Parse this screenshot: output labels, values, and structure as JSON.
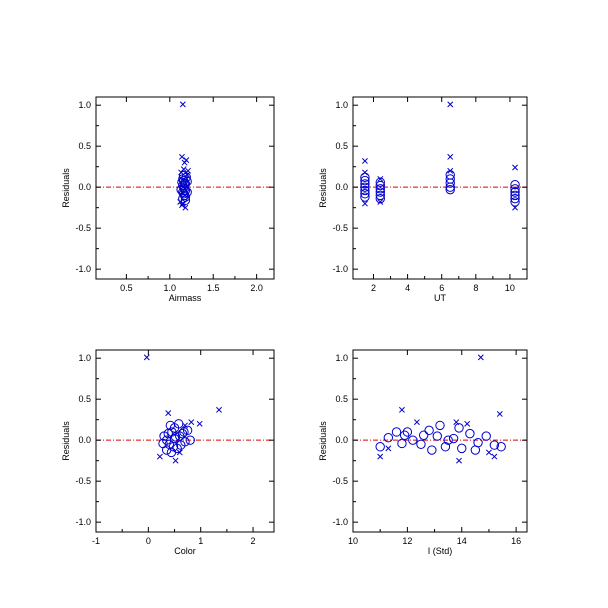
{
  "colors": {
    "marker": "#0000cc",
    "zero_line": "#e00000",
    "axes": "#000000"
  },
  "chart_data": [
    {
      "type": "scatter",
      "title": "",
      "xlabel": "Airmass",
      "ylabel": "Residuals",
      "xlim": [
        0.15,
        2.2
      ],
      "ylim": [
        -1.12,
        1.1
      ],
      "xticks": [
        0.5,
        1.0,
        1.5,
        2.0
      ],
      "xtick_labels": [
        "0.5",
        "1.0",
        "1.5",
        "2.0"
      ],
      "yticks": [
        -1.0,
        -0.5,
        0.0,
        0.5,
        1.0
      ],
      "ytick_labels": [
        "-1.0",
        "-0.5",
        "0.0",
        "0.5",
        "1.0"
      ],
      "reference_line": {
        "y": 0.0,
        "style": "dash-dot",
        "color": "#e00000"
      },
      "series": [
        {
          "marker": "x",
          "points": [
            [
              1.15,
              1.01
            ],
            [
              1.14,
              0.37
            ],
            [
              1.19,
              0.33
            ],
            [
              1.17,
              0.3
            ],
            [
              1.16,
              0.22
            ],
            [
              1.13,
              0.18
            ],
            [
              1.2,
              0.15
            ],
            [
              1.15,
              -0.2
            ],
            [
              1.18,
              -0.25
            ],
            [
              1.12,
              -0.18
            ],
            [
              1.21,
              0.2
            ],
            [
              1.14,
              -0.22
            ]
          ]
        },
        {
          "marker": "o",
          "points": [
            [
              1.15,
              0.1
            ],
            [
              1.16,
              0.08
            ],
            [
              1.17,
              0.05
            ],
            [
              1.18,
              0.04
            ],
            [
              1.15,
              0.02
            ],
            [
              1.16,
              0.0
            ],
            [
              1.17,
              -0.02
            ],
            [
              1.18,
              -0.04
            ],
            [
              1.15,
              -0.06
            ],
            [
              1.16,
              -0.08
            ],
            [
              1.17,
              -0.1
            ],
            [
              1.18,
              -0.12
            ],
            [
              1.15,
              -0.14
            ],
            [
              1.19,
              0.12
            ],
            [
              1.14,
              0.06
            ],
            [
              1.2,
              -0.06
            ],
            [
              1.13,
              -0.03
            ],
            [
              1.2,
              0.07
            ],
            [
              1.16,
              0.14
            ],
            [
              1.18,
              -0.16
            ]
          ]
        }
      ]
    },
    {
      "type": "scatter",
      "title": "",
      "xlabel": "UT",
      "ylabel": "Residuals",
      "xlim": [
        0.8,
        11.0
      ],
      "ylim": [
        -1.12,
        1.1
      ],
      "xticks": [
        2,
        4,
        6,
        8,
        10
      ],
      "xtick_labels": [
        "2",
        "4",
        "6",
        "8",
        "10"
      ],
      "yticks": [
        -1.0,
        -0.5,
        0.0,
        0.5,
        1.0
      ],
      "ytick_labels": [
        "-1.0",
        "-0.5",
        "0.0",
        "0.5",
        "1.0"
      ],
      "reference_line": {
        "y": 0.0,
        "style": "dash-dot",
        "color": "#e00000"
      },
      "series": [
        {
          "marker": "x",
          "points": [
            [
              1.5,
              0.32
            ],
            [
              1.5,
              -0.2
            ],
            [
              2.4,
              -0.18
            ],
            [
              6.5,
              1.01
            ],
            [
              6.5,
              0.37
            ],
            [
              6.5,
              0.2
            ],
            [
              10.3,
              0.24
            ],
            [
              10.3,
              -0.25
            ],
            [
              1.5,
              0.18
            ],
            [
              2.4,
              0.1
            ]
          ]
        },
        {
          "marker": "o",
          "points": [
            [
              1.5,
              0.12
            ],
            [
              1.5,
              0.08
            ],
            [
              1.5,
              0.04
            ],
            [
              1.5,
              0.0
            ],
            [
              1.5,
              -0.04
            ],
            [
              1.5,
              -0.08
            ],
            [
              1.5,
              -0.12
            ],
            [
              2.4,
              0.06
            ],
            [
              2.4,
              0.02
            ],
            [
              2.4,
              -0.02
            ],
            [
              2.4,
              -0.06
            ],
            [
              2.4,
              -0.1
            ],
            [
              2.4,
              -0.14
            ],
            [
              6.5,
              0.15
            ],
            [
              6.5,
              0.1
            ],
            [
              6.5,
              0.05
            ],
            [
              6.5,
              0.0
            ],
            [
              6.5,
              -0.03
            ],
            [
              10.3,
              0.03
            ],
            [
              10.3,
              -0.02
            ],
            [
              10.3,
              -0.06
            ],
            [
              10.3,
              -0.1
            ],
            [
              10.3,
              -0.14
            ],
            [
              10.3,
              -0.18
            ]
          ]
        }
      ]
    },
    {
      "type": "scatter",
      "title": "",
      "xlabel": "Color",
      "ylabel": "Residuals",
      "xlim": [
        -1.0,
        2.4
      ],
      "ylim": [
        -1.12,
        1.1
      ],
      "xticks": [
        -1,
        0,
        1,
        2
      ],
      "xtick_labels": [
        "-1",
        "0",
        "1",
        "2"
      ],
      "yticks": [
        -1.0,
        -0.5,
        0.0,
        0.5,
        1.0
      ],
      "ytick_labels": [
        "-1.0",
        "-0.5",
        "0.0",
        "0.5",
        "1.0"
      ],
      "reference_line": {
        "y": 0.0,
        "style": "dash-dot",
        "color": "#e00000"
      },
      "series": [
        {
          "marker": "x",
          "points": [
            [
              -0.03,
              1.01
            ],
            [
              1.35,
              0.37
            ],
            [
              0.38,
              0.33
            ],
            [
              0.98,
              0.2
            ],
            [
              0.82,
              0.22
            ],
            [
              0.22,
              -0.2
            ],
            [
              0.52,
              -0.25
            ],
            [
              0.7,
              0.18
            ],
            [
              0.6,
              -0.15
            ]
          ]
        },
        {
          "marker": "o",
          "points": [
            [
              0.3,
              0.05
            ],
            [
              0.35,
              0.0
            ],
            [
              0.4,
              -0.05
            ],
            [
              0.45,
              0.1
            ],
            [
              0.5,
              0.15
            ],
            [
              0.55,
              -0.1
            ],
            [
              0.6,
              0.05
            ],
            [
              0.65,
              0.08
            ],
            [
              0.7,
              -0.02
            ],
            [
              0.75,
              0.12
            ],
            [
              0.8,
              0.0
            ],
            [
              0.35,
              -0.12
            ],
            [
              0.42,
              0.18
            ],
            [
              0.48,
              -0.08
            ],
            [
              0.58,
              0.2
            ],
            [
              0.28,
              -0.04
            ],
            [
              0.5,
              0.02
            ],
            [
              0.62,
              -0.06
            ],
            [
              0.38,
              0.08
            ],
            [
              0.44,
              -0.15
            ],
            [
              0.68,
              0.1
            ],
            [
              0.52,
              0.04
            ]
          ]
        }
      ]
    },
    {
      "type": "scatter",
      "title": "",
      "xlabel": "I (Std)",
      "ylabel": "Residuals",
      "xlim": [
        10.0,
        16.4
      ],
      "ylim": [
        -1.12,
        1.1
      ],
      "xticks": [
        10,
        12,
        14,
        16
      ],
      "xtick_labels": [
        "10",
        "12",
        "14",
        "16"
      ],
      "yticks": [
        -1.0,
        -0.5,
        0.0,
        0.5,
        1.0
      ],
      "ytick_labels": [
        "-1.0",
        "-0.5",
        "0.0",
        "0.5",
        "1.0"
      ],
      "reference_line": {
        "y": 0.0,
        "style": "dash-dot",
        "color": "#e00000"
      },
      "series": [
        {
          "marker": "x",
          "points": [
            [
              14.7,
              1.01
            ],
            [
              11.8,
              0.37
            ],
            [
              15.4,
              0.32
            ],
            [
              12.35,
              0.22
            ],
            [
              13.8,
              0.22
            ],
            [
              14.2,
              0.2
            ],
            [
              11.0,
              -0.2
            ],
            [
              15.2,
              -0.2
            ],
            [
              13.9,
              -0.25
            ],
            [
              11.3,
              -0.1
            ],
            [
              15.0,
              -0.15
            ]
          ]
        },
        {
          "marker": "o",
          "points": [
            [
              11.0,
              -0.08
            ],
            [
              11.3,
              0.03
            ],
            [
              11.6,
              0.1
            ],
            [
              11.9,
              0.06
            ],
            [
              12.2,
              0.0
            ],
            [
              12.5,
              -0.05
            ],
            [
              12.8,
              0.12
            ],
            [
              13.1,
              0.05
            ],
            [
              13.4,
              -0.08
            ],
            [
              13.7,
              0.02
            ],
            [
              14.0,
              -0.1
            ],
            [
              14.3,
              0.08
            ],
            [
              14.6,
              -0.03
            ],
            [
              14.9,
              0.05
            ],
            [
              15.2,
              -0.06
            ],
            [
              15.45,
              -0.08
            ],
            [
              12.0,
              0.1
            ],
            [
              12.6,
              0.06
            ],
            [
              13.2,
              0.18
            ],
            [
              13.9,
              0.15
            ],
            [
              14.5,
              -0.12
            ],
            [
              12.9,
              -0.12
            ],
            [
              11.8,
              -0.04
            ],
            [
              13.5,
              0.0
            ]
          ]
        }
      ]
    }
  ]
}
